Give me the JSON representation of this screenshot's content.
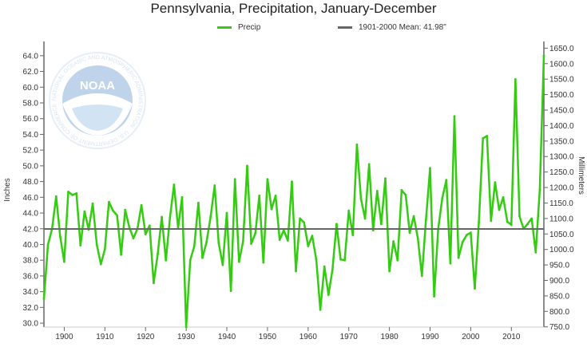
{
  "colors": {
    "series": "#33cc11",
    "mean": "#666666",
    "axis": "#666666",
    "grid": "#e6e6e6"
  },
  "logo": {
    "text": "NOAA",
    "ring_text": "NATIONAL OCEANIC AND ATMOSPHERIC ADMINISTRATION · U.S. DEPARTMENT OF COMMERCE"
  },
  "chart_data": {
    "type": "line",
    "title": "Pennsylvania, Precipitation, January-December",
    "ylabel": "Inches",
    "y2label": "Millimeters",
    "ylim": [
      29.5,
      65.2
    ],
    "grid": false,
    "legend": "top",
    "yticks": [
      "30.0",
      "32.0",
      "34.0",
      "36.0",
      "38.0",
      "40.0",
      "42.0",
      "44.0",
      "46.0",
      "48.0",
      "50.0",
      "52.0",
      "54.0",
      "56.0",
      "58.0",
      "60.0",
      "62.0",
      "64.0"
    ],
    "y2ticks": [
      "750.0",
      "800.0",
      "850.0",
      "900.0",
      "950.0",
      "1000.0",
      "1050.0",
      "1100.0",
      "1150.0",
      "1200.0",
      "1250.0",
      "1300.0",
      "1350.0",
      "1400.0",
      "1450.0",
      "1500.0",
      "1550.0",
      "1600.0",
      "1650.0"
    ],
    "xticks": [
      "1900",
      "1910",
      "1920",
      "1930",
      "1940",
      "1950",
      "1960",
      "1970",
      "1980",
      "1990",
      "2000",
      "2010"
    ],
    "mean": {
      "label": "1901-2000 Mean: 41.98\"",
      "value": 41.98
    },
    "series": [
      {
        "name": "Precip",
        "x": [
          1895,
          1896,
          1897,
          1898,
          1899,
          1900,
          1901,
          1902,
          1903,
          1904,
          1905,
          1906,
          1907,
          1908,
          1909,
          1910,
          1911,
          1912,
          1913,
          1914,
          1915,
          1916,
          1917,
          1918,
          1919,
          1920,
          1921,
          1922,
          1923,
          1924,
          1925,
          1926,
          1927,
          1928,
          1929,
          1930,
          1931,
          1932,
          1933,
          1934,
          1935,
          1936,
          1937,
          1938,
          1939,
          1940,
          1941,
          1942,
          1943,
          1944,
          1945,
          1946,
          1947,
          1948,
          1949,
          1950,
          1951,
          1952,
          1953,
          1954,
          1955,
          1956,
          1957,
          1958,
          1959,
          1960,
          1961,
          1962,
          1963,
          1964,
          1965,
          1966,
          1967,
          1968,
          1969,
          1970,
          1971,
          1972,
          1973,
          1974,
          1975,
          1976,
          1977,
          1978,
          1979,
          1980,
          1981,
          1982,
          1983,
          1984,
          1985,
          1986,
          1987,
          1988,
          1989,
          1990,
          1991,
          1992,
          1993,
          1994,
          1995,
          1996,
          1997,
          1998,
          1999,
          2000,
          2001,
          2002,
          2003,
          2004,
          2005,
          2006,
          2007,
          2008,
          2009,
          2010,
          2011,
          2012,
          2013,
          2014,
          2015,
          2016,
          2017,
          2018
        ],
        "values": [
          33.1,
          40.0,
          42.0,
          46.1,
          41.0,
          37.8,
          46.7,
          46.3,
          46.5,
          39.9,
          44.2,
          41.9,
          45.2,
          40.0,
          37.5,
          39.4,
          45.4,
          44.3,
          43.7,
          38.7,
          44.4,
          42.2,
          40.8,
          42.0,
          45.0,
          41.3,
          42.4,
          35.1,
          38.8,
          43.5,
          38.0,
          43.4,
          47.6,
          42.1,
          46.0,
          29.5,
          38.0,
          39.8,
          45.3,
          38.3,
          40.3,
          43.5,
          47.5,
          40.2,
          37.4,
          44.0,
          34.1,
          48.3,
          37.8,
          40.4,
          50.0,
          40.1,
          41.4,
          46.2,
          37.7,
          48.3,
          44.5,
          46.2,
          40.6,
          41.8,
          40.5,
          48.0,
          36.6,
          43.3,
          42.8,
          39.8,
          41.1,
          38.1,
          31.7,
          37.2,
          33.6,
          36.8,
          42.6,
          38.1,
          38.0,
          44.3,
          41.2,
          52.7,
          45.8,
          43.3,
          50.2,
          41.8,
          46.8,
          42.6,
          48.4,
          36.6,
          40.4,
          38.0,
          46.9,
          46.3,
          41.5,
          43.6,
          40.8,
          36.0,
          43.2,
          49.7,
          33.4,
          42.0,
          45.9,
          48.2,
          37.6,
          56.3,
          38.3,
          40.3,
          41.2,
          41.5,
          34.4,
          42.8,
          53.5,
          53.8,
          43.0,
          47.9,
          44.4,
          46.0,
          42.9,
          42.5,
          61.0,
          43.6,
          42.0,
          42.6,
          43.3,
          39.0,
          47.0,
          64.0
        ]
      }
    ]
  }
}
